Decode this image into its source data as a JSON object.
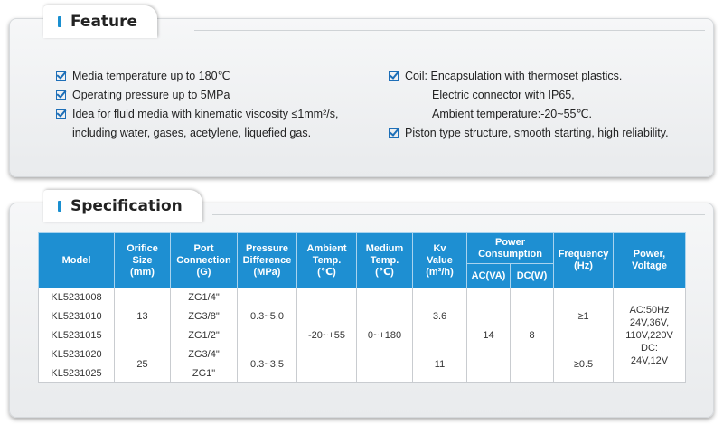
{
  "feature": {
    "title": "Feature",
    "left": [
      {
        "text": "Media temperature up to 180℃"
      },
      {
        "text": "Operating pressure up to 5MPa"
      },
      {
        "text": "Idea for fluid media with kinematic viscosity ≤1mm²/s,"
      },
      {
        "text": "including water, gases, acetylene, liquefied gas."
      }
    ],
    "right": [
      {
        "text": "Coil: Encapsulation with thermoset plastics."
      },
      {
        "text": "Electric connector with IP65,"
      },
      {
        "text": "Ambient temperature:-20~55℃."
      },
      {
        "text": "Piston type structure, smooth starting, high reliability."
      }
    ]
  },
  "specification": {
    "title": "Specification",
    "headers": {
      "model": "Model",
      "orifice": [
        "Orifice",
        "Size",
        "(mm)"
      ],
      "port": [
        "Port",
        "Connection",
        "(G)"
      ],
      "pressure": [
        "Pressure",
        "Difference",
        "(MPa)"
      ],
      "ambient": [
        "Ambient",
        "Temp.",
        "(℃)"
      ],
      "medium": [
        "Medium",
        "Temp.",
        "(℃)"
      ],
      "kv": [
        "Kv",
        "Value",
        "(m³/h)"
      ],
      "power_consumption": [
        "Power",
        "Consumption"
      ],
      "ac": "AC(VA)",
      "dc": "DC(W)",
      "frequency": [
        "Frequency",
        "(Hz)"
      ],
      "power_voltage": [
        "Power,",
        "Voltage"
      ]
    },
    "models": [
      "KL5231008",
      "KL5231010",
      "KL5231015",
      "KL5231020",
      "KL5231025"
    ],
    "ports": [
      "ZG1/4\"",
      "ZG3/8\"",
      "ZG1/2\"",
      "ZG3/4\"",
      "ZG1\""
    ],
    "orifice_a": "13",
    "orifice_b": "25",
    "pressure_a": "0.3~5.0",
    "pressure_b": "0.3~3.5",
    "ambient": "-20~+55",
    "medium": "0~+180",
    "kv_a": "3.6",
    "kv_b": "11",
    "ac": "14",
    "dc": "8",
    "freq_a": "≥1",
    "freq_b": "≥0.5",
    "voltage": [
      "AC:50Hz",
      "24V,36V,",
      "110V,220V",
      "DC:",
      "24V,12V"
    ]
  }
}
